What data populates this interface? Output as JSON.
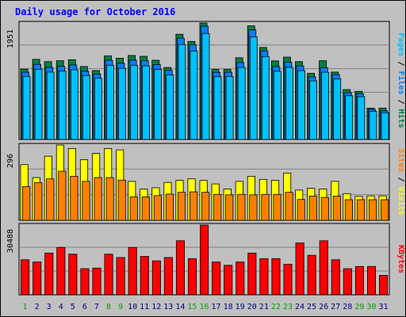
{
  "title": "Daily usage for October 2016",
  "colors": {
    "background": "#c0c0c0",
    "plot": "#c0c0c0",
    "title": "#0000ff",
    "hits": "#008040",
    "files": "#0080ff",
    "pages": "#00c0ff",
    "visits": "#ffff00",
    "sites": "#ff8000",
    "kbytes": "#ff0000",
    "weekend_day": "#00a000",
    "weekday": "#000080"
  },
  "chart_data": [
    {
      "type": "bar",
      "panel": "top",
      "max_label": "1951",
      "ylim": [
        0,
        1951
      ],
      "legend": [
        "Pages",
        "Files",
        "Hits"
      ],
      "categories": [
        "1",
        "2",
        "3",
        "4",
        "5",
        "6",
        "7",
        "8",
        "9",
        "10",
        "11",
        "12",
        "13",
        "14",
        "15",
        "16",
        "17",
        "18",
        "19",
        "20",
        "21",
        "22",
        "23",
        "24",
        "25",
        "26",
        "27",
        "28",
        "29",
        "30",
        "31"
      ],
      "series": [
        {
          "name": "Hits",
          "values": [
            1180,
            1342,
            1304,
            1319,
            1336,
            1222,
            1154,
            1399,
            1361,
            1407,
            1393,
            1327,
            1206,
            1762,
            1642,
            1951,
            1173,
            1173,
            1369,
            1903,
            1541,
            1316,
            1380,
            1304,
            1108,
            1319,
            1129,
            836,
            806,
            526,
            526
          ]
        },
        {
          "name": "Files",
          "values": [
            1126,
            1257,
            1207,
            1226,
            1248,
            1142,
            1096,
            1327,
            1276,
            1329,
            1319,
            1256,
            1157,
            1697,
            1584,
            1897,
            1124,
            1126,
            1289,
            1836,
            1484,
            1221,
            1292,
            1232,
            1048,
            1203,
            1086,
            783,
            767,
            505,
            481
          ]
        },
        {
          "name": "Pages",
          "values": [
            1055,
            1176,
            1128,
            1146,
            1167,
            1071,
            1025,
            1243,
            1192,
            1243,
            1234,
            1172,
            1083,
            1590,
            1482,
            1775,
            1053,
            1055,
            1206,
            1718,
            1390,
            1142,
            1209,
            1153,
            981,
            1126,
            1016,
            732,
            717,
            473,
            450
          ]
        }
      ]
    },
    {
      "type": "bar",
      "panel": "middle",
      "max_label": "296",
      "ylim": [
        0,
        296
      ],
      "legend": [
        "Sites",
        "Visits"
      ],
      "categories": [
        "1",
        "2",
        "3",
        "4",
        "5",
        "6",
        "7",
        "8",
        "9",
        "10",
        "11",
        "12",
        "13",
        "14",
        "15",
        "16",
        "17",
        "18",
        "19",
        "20",
        "21",
        "22",
        "23",
        "24",
        "25",
        "26",
        "27",
        "28",
        "29",
        "30",
        "31"
      ],
      "series": [
        {
          "name": "Visits",
          "values": [
            219,
            168,
            252,
            296,
            282,
            238,
            263,
            282,
            277,
            153,
            123,
            128,
            149,
            157,
            163,
            157,
            143,
            123,
            153,
            173,
            161,
            157,
            186,
            119,
            126,
            123,
            153,
            105,
            94,
            96,
            96
          ]
        },
        {
          "name": "Sites",
          "values": [
            133,
            148,
            163,
            193,
            173,
            153,
            168,
            168,
            158,
            92,
            92,
            97,
            103,
            110,
            112,
            110,
            102,
            100,
            102,
            100,
            102,
            102,
            110,
            82,
            95,
            90,
            95,
            81,
            81,
            81,
            81
          ]
        }
      ]
    },
    {
      "type": "bar",
      "panel": "bottom",
      "max_label": "30488",
      "ylim": [
        0,
        30488
      ],
      "legend": [
        "KBytes"
      ],
      "categories": [
        "1",
        "2",
        "3",
        "4",
        "5",
        "6",
        "7",
        "8",
        "9",
        "10",
        "11",
        "12",
        "13",
        "14",
        "15",
        "16",
        "17",
        "18",
        "19",
        "20",
        "21",
        "22",
        "23",
        "24",
        "25",
        "26",
        "27",
        "28",
        "29",
        "30",
        "31"
      ],
      "series": [
        {
          "name": "KBytes",
          "values": [
            15330,
            14350,
            18260,
            20700,
            17770,
            11420,
            11700,
            17770,
            16310,
            20700,
            16800,
            14840,
            16310,
            23630,
            15820,
            30487,
            14350,
            12890,
            14350,
            18260,
            15820,
            15820,
            13380,
            22660,
            17280,
            23630,
            15330,
            11420,
            12400,
            12400,
            8500
          ]
        }
      ]
    }
  ]
}
